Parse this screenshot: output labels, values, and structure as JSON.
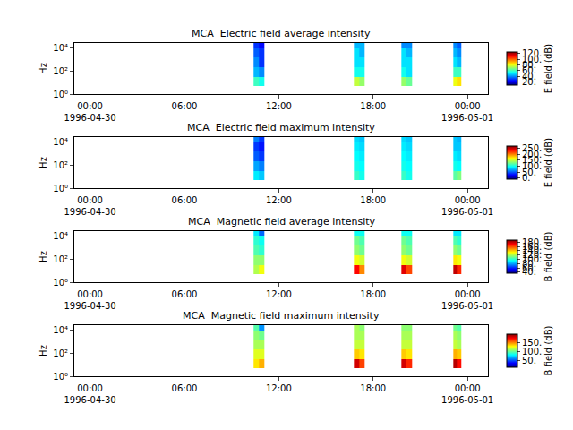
{
  "chart_data": [
    {
      "type": "heatmap",
      "title": "MCA  Electric field average intensity",
      "ylabel": "Hz",
      "log": "y",
      "x": [
        "1996-04-30 10:24",
        "1996-04-30 10:45",
        "1996-04-30 11:06",
        "1996-04-30 16:48",
        "1996-04-30 17:06",
        "1996-04-30 17:27",
        "1996-04-30 19:48",
        "1996-04-30 20:06",
        "1996-04-30 20:27",
        "1996-04-30 23:06",
        "1996-04-30 23:21",
        "1996-04-30 23:36"
      ],
      "y": [
        5,
        30,
        200,
        1500,
        8000,
        25000
      ],
      "z": [
        [
          60,
          55,
          null,
          75,
          70,
          null,
          70,
          65,
          null,
          80,
          85
        ],
        [
          45,
          40,
          null,
          55,
          55,
          null,
          55,
          50,
          null,
          60,
          60
        ],
        [
          40,
          30,
          null,
          50,
          50,
          null,
          50,
          50,
          null,
          50,
          45
        ],
        [
          35,
          30,
          null,
          50,
          45,
          null,
          50,
          45,
          null,
          45,
          40
        ],
        [
          30,
          25,
          null,
          45,
          45,
          null,
          40,
          40,
          null,
          40,
          35
        ]
      ],
      "xlim": [
        "1996-04-29 23:00",
        "1996-05-01 01:18"
      ],
      "xticks": [
        {
          "value": "1996-04-30 00:00",
          "label": "00:00\n1996-04-30"
        },
        {
          "value": "1996-04-30 06:00",
          "label": "06:00"
        },
        {
          "value": "1996-04-30 12:00",
          "label": "12:00"
        },
        {
          "value": "1996-04-30 18:00",
          "label": "18:00"
        },
        {
          "value": "1996-05-01 00:00",
          "label": "00:00\n1996-05-01"
        }
      ],
      "ylim": [
        1,
        25000
      ],
      "yticks": [
        {
          "value": 1,
          "label": "10⁰"
        },
        {
          "value": 100,
          "label": "10²"
        },
        {
          "value": 10000,
          "label": "10⁴"
        }
      ],
      "colorbar_title": "E field (dB)",
      "colorbar_range": [
        10,
        125
      ],
      "colorbar_ticks": [
        {
          "value": 20,
          "label": "20."
        },
        {
          "value": 40,
          "label": "40."
        },
        {
          "value": 60,
          "label": "60."
        },
        {
          "value": 80,
          "label": "80."
        },
        {
          "value": 100,
          "label": "100."
        },
        {
          "value": 120,
          "label": "120."
        }
      ]
    },
    {
      "type": "heatmap",
      "title": "MCA  Electric field maximum intensity",
      "ylabel": "Hz",
      "log": "y",
      "x": [
        "1996-04-30 10:24",
        "1996-04-30 10:45",
        "1996-04-30 11:06",
        "1996-04-30 16:48",
        "1996-04-30 17:06",
        "1996-04-30 17:27",
        "1996-04-30 19:48",
        "1996-04-30 20:06",
        "1996-04-30 20:27",
        "1996-04-30 23:06",
        "1996-04-30 23:21",
        "1996-04-30 23:36"
      ],
      "y": [
        5,
        30,
        200,
        1500,
        8000,
        25000
      ],
      "z": [
        [
          90,
          80,
          null,
          110,
          100,
          null,
          110,
          100,
          null,
          120,
          130
        ],
        [
          70,
          60,
          null,
          100,
          95,
          null,
          100,
          95,
          null,
          100,
          95
        ],
        [
          50,
          40,
          null,
          95,
          90,
          null,
          95,
          90,
          null,
          90,
          85
        ],
        [
          40,
          30,
          null,
          90,
          85,
          null,
          90,
          85,
          null,
          80,
          80
        ],
        [
          60,
          40,
          null,
          85,
          80,
          null,
          85,
          80,
          null,
          80,
          75
        ]
      ],
      "xlim": [
        "1996-04-29 23:00",
        "1996-05-01 01:18"
      ],
      "xticks": [
        {
          "value": "1996-04-30 00:00",
          "label": "00:00\n1996-04-30"
        },
        {
          "value": "1996-04-30 06:00",
          "label": "06:00"
        },
        {
          "value": "1996-04-30 12:00",
          "label": "12:00"
        },
        {
          "value": "1996-04-30 18:00",
          "label": "18:00"
        },
        {
          "value": "1996-05-01 00:00",
          "label": "00:00\n1996-05-01"
        }
      ],
      "ylim": [
        1,
        25000
      ],
      "yticks": [
        {
          "value": 1,
          "label": "10⁰"
        },
        {
          "value": 100,
          "label": "10²"
        },
        {
          "value": 10000,
          "label": "10⁴"
        }
      ],
      "colorbar_title": "E field (dB)",
      "colorbar_range": [
        -10,
        270
      ],
      "colorbar_ticks": [
        {
          "value": 0,
          "label": "0."
        },
        {
          "value": 50,
          "label": "50."
        },
        {
          "value": 100,
          "label": "100."
        },
        {
          "value": 150,
          "label": "150."
        },
        {
          "value": 200,
          "label": "200."
        },
        {
          "value": 250,
          "label": "250."
        }
      ]
    },
    {
      "type": "heatmap",
      "title": "MCA  Magnetic field average intensity",
      "ylabel": "Hz",
      "log": "y",
      "x": [
        "1996-04-30 10:24",
        "1996-04-30 10:45",
        "1996-04-30 11:06",
        "1996-04-30 16:48",
        "1996-04-30 17:06",
        "1996-04-30 17:27",
        "1996-04-30 19:48",
        "1996-04-30 20:06",
        "1996-04-30 20:27",
        "1996-04-30 23:06",
        "1996-04-30 23:21",
        "1996-04-30 23:36"
      ],
      "y": [
        5,
        30,
        200,
        1500,
        8000,
        25000
      ],
      "z": [
        [
          120,
          130,
          null,
          170,
          150,
          null,
          175,
          160,
          null,
          180,
          165
        ],
        [
          115,
          115,
          null,
          130,
          125,
          null,
          130,
          125,
          null,
          135,
          130
        ],
        [
          105,
          100,
          null,
          115,
          110,
          null,
          115,
          110,
          null,
          115,
          110
        ],
        [
          100,
          95,
          null,
          110,
          105,
          null,
          110,
          105,
          null,
          105,
          100
        ],
        [
          90,
          70,
          null,
          95,
          95,
          null,
          95,
          95,
          null,
          90,
          90
        ]
      ],
      "xlim": [
        "1996-04-29 23:00",
        "1996-05-01 01:18"
      ],
      "xticks": [
        {
          "value": "1996-04-30 00:00",
          "label": "00:00\n1996-04-30"
        },
        {
          "value": "1996-04-30 06:00",
          "label": "06:00"
        },
        {
          "value": "1996-04-30 12:00",
          "label": "12:00"
        },
        {
          "value": "1996-04-30 18:00",
          "label": "18:00"
        },
        {
          "value": "1996-05-01 00:00",
          "label": "00:00\n1996-05-01"
        }
      ],
      "ylim": [
        1,
        25000
      ],
      "yticks": [
        {
          "value": 1,
          "label": "10⁰"
        },
        {
          "value": 100,
          "label": "10²"
        },
        {
          "value": 10000,
          "label": "10⁴"
        }
      ],
      "colorbar_title": "B field (dB)",
      "colorbar_range": [
        35,
        190
      ],
      "colorbar_ticks": [
        {
          "value": 40,
          "label": "40."
        },
        {
          "value": 60,
          "label": "60."
        },
        {
          "value": 80,
          "label": "80."
        },
        {
          "value": 100,
          "label": "100."
        },
        {
          "value": 120,
          "label": "120."
        },
        {
          "value": 140,
          "label": "140."
        },
        {
          "value": 160,
          "label": "160."
        },
        {
          "value": 180,
          "label": "180."
        }
      ]
    },
    {
      "type": "heatmap",
      "title": "MCA  Magnetic field maximum intensity",
      "ylabel": "Hz",
      "log": "y",
      "x": [
        "1996-04-30 10:24",
        "1996-04-30 10:45",
        "1996-04-30 11:06",
        "1996-04-30 16:48",
        "1996-04-30 17:06",
        "1996-04-30 17:27",
        "1996-04-30 19:48",
        "1996-04-30 20:06",
        "1996-04-30 20:27",
        "1996-04-30 23:06",
        "1996-04-30 23:21",
        "1996-04-30 23:36"
      ],
      "y": [
        5,
        30,
        200,
        1500,
        8000,
        25000
      ],
      "z": [
        [
          130,
          140,
          null,
          180,
          160,
          null,
          180,
          165,
          null,
          185,
          170
        ],
        [
          120,
          120,
          null,
          135,
          130,
          null,
          135,
          130,
          null,
          140,
          135
        ],
        [
          110,
          110,
          null,
          115,
          115,
          null,
          115,
          115,
          null,
          115,
          110
        ],
        [
          105,
          100,
          null,
          110,
          110,
          null,
          110,
          110,
          null,
          110,
          105
        ],
        [
          95,
          60,
          null,
          110,
          105,
          null,
          105,
          105,
          null,
          100,
          95
        ]
      ],
      "xlim": [
        "1996-04-29 23:00",
        "1996-05-01 01:18"
      ],
      "xticks": [
        {
          "value": "1996-04-30 00:00",
          "label": "00:00\n1996-04-30"
        },
        {
          "value": "1996-04-30 06:00",
          "label": "06:00"
        },
        {
          "value": "1996-04-30 12:00",
          "label": "12:00"
        },
        {
          "value": "1996-04-30 18:00",
          "label": "18:00"
        },
        {
          "value": "1996-05-01 00:00",
          "label": "00:00\n1996-05-01"
        }
      ],
      "ylim": [
        1,
        25000
      ],
      "yticks": [
        {
          "value": 1,
          "label": "10⁰"
        },
        {
          "value": 100,
          "label": "10²"
        },
        {
          "value": 10000,
          "label": "10⁴"
        }
      ],
      "colorbar_title": "B field (dB)",
      "colorbar_range": [
        10,
        195
      ],
      "colorbar_ticks": [
        {
          "value": 50,
          "label": "50."
        },
        {
          "value": 100,
          "label": "100."
        },
        {
          "value": 150,
          "label": "150."
        }
      ]
    }
  ]
}
